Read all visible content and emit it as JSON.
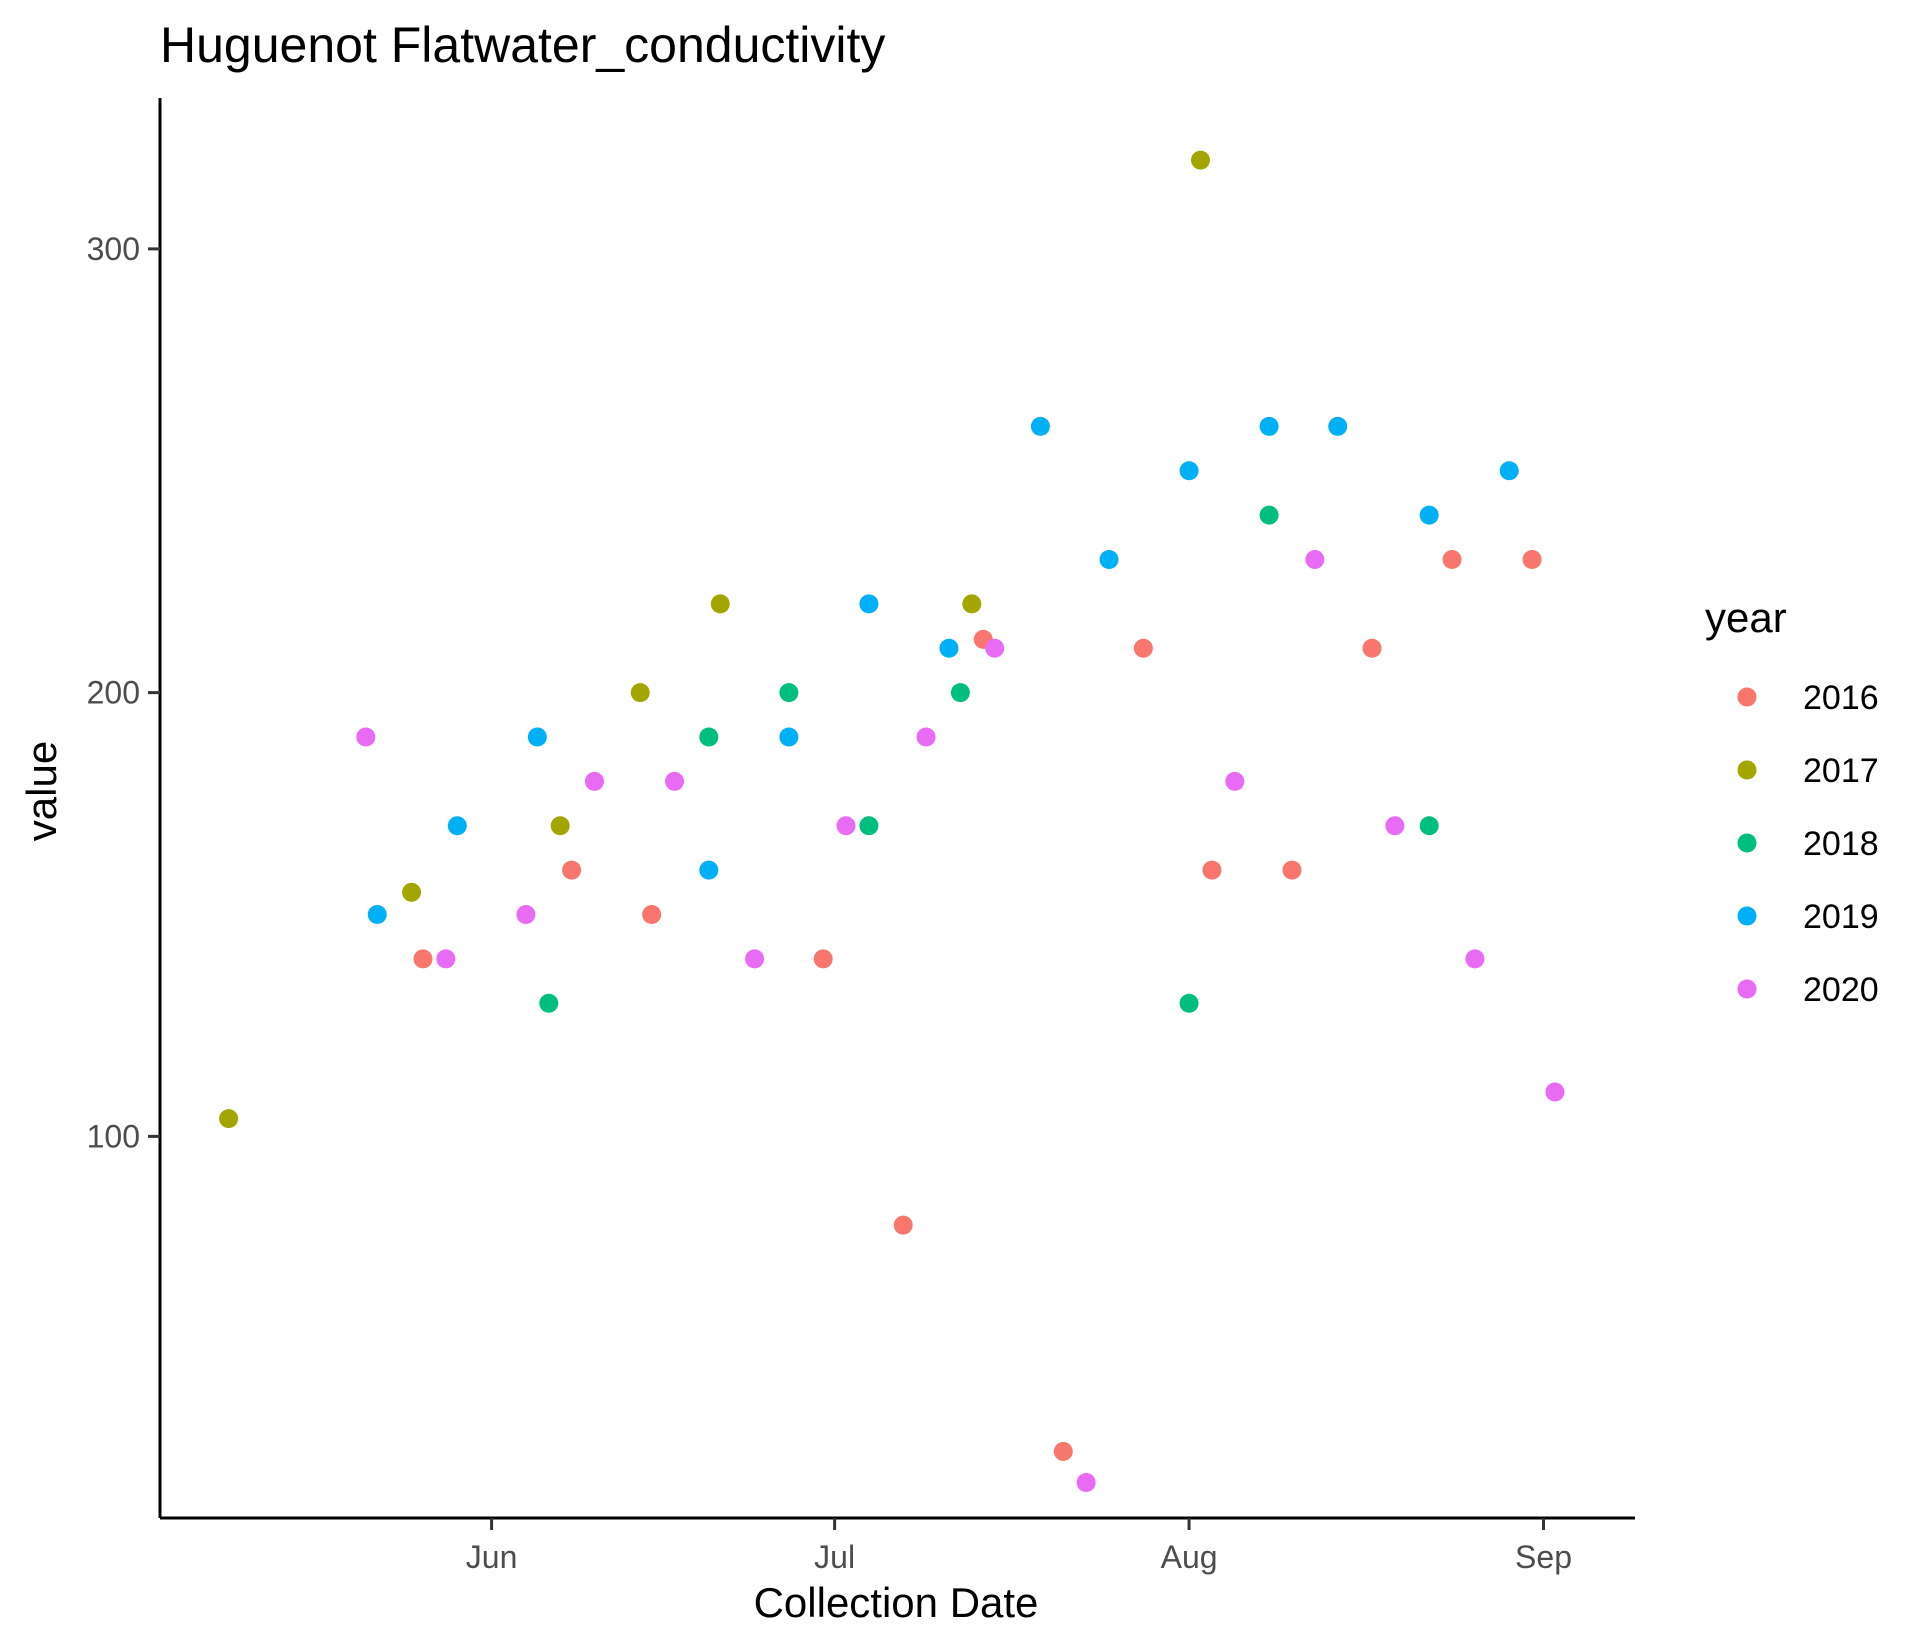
{
  "chart_data": {
    "type": "scatter",
    "title": "Huguenot Flatwater_conductivity",
    "xlabel": "Collection Date",
    "ylabel": "value",
    "x_axis": {
      "type": "date",
      "ticks": [
        {
          "label": "Jun",
          "value": "06-01"
        },
        {
          "label": "Jul",
          "value": "07-01"
        },
        {
          "label": "Aug",
          "value": "08-01"
        },
        {
          "label": "Sep",
          "value": "09-01"
        }
      ]
    },
    "y_axis": {
      "ticks": [
        100,
        200,
        300
      ]
    },
    "ylim": [
      14,
      334
    ],
    "xlim": [
      "05-03",
      "09-09"
    ],
    "grid": false,
    "legend": {
      "title": "year",
      "placement": "right"
    },
    "series": [
      {
        "name": "2016",
        "color": "#F8766D",
        "points": [
          {
            "x": "05-26",
            "y": 140
          },
          {
            "x": "06-08",
            "y": 160
          },
          {
            "x": "06-15",
            "y": 150
          },
          {
            "x": "06-30",
            "y": 140
          },
          {
            "x": "07-07",
            "y": 80
          },
          {
            "x": "07-14",
            "y": 212
          },
          {
            "x": "07-21",
            "y": 29
          },
          {
            "x": "07-28",
            "y": 210
          },
          {
            "x": "08-03",
            "y": 160
          },
          {
            "x": "08-10",
            "y": 160
          },
          {
            "x": "08-17",
            "y": 210
          },
          {
            "x": "08-24",
            "y": 230
          },
          {
            "x": "08-31",
            "y": 230
          }
        ]
      },
      {
        "name": "2017",
        "color": "#A3A500",
        "points": [
          {
            "x": "05-09",
            "y": 104
          },
          {
            "x": "05-25",
            "y": 155
          },
          {
            "x": "06-07",
            "y": 170
          },
          {
            "x": "06-14",
            "y": 200
          },
          {
            "x": "06-21",
            "y": 220
          },
          {
            "x": "07-13",
            "y": 220
          },
          {
            "x": "08-02",
            "y": 320
          }
        ]
      },
      {
        "name": "2018",
        "color": "#00BF7D",
        "points": [
          {
            "x": "06-06",
            "y": 130
          },
          {
            "x": "06-20",
            "y": 190
          },
          {
            "x": "06-27",
            "y": 200
          },
          {
            "x": "07-04",
            "y": 170
          },
          {
            "x": "07-12",
            "y": 200
          },
          {
            "x": "08-01",
            "y": 130
          },
          {
            "x": "08-08",
            "y": 240
          },
          {
            "x": "08-22",
            "y": 170
          }
        ]
      },
      {
        "name": "2019",
        "color": "#00B0F6",
        "points": [
          {
            "x": "05-22",
            "y": 150
          },
          {
            "x": "05-29",
            "y": 170
          },
          {
            "x": "06-05",
            "y": 190
          },
          {
            "x": "06-20",
            "y": 160
          },
          {
            "x": "06-27",
            "y": 190
          },
          {
            "x": "07-04",
            "y": 220
          },
          {
            "x": "07-11",
            "y": 210
          },
          {
            "x": "07-19",
            "y": 260
          },
          {
            "x": "07-25",
            "y": 230
          },
          {
            "x": "08-01",
            "y": 250
          },
          {
            "x": "08-08",
            "y": 260
          },
          {
            "x": "08-14",
            "y": 260
          },
          {
            "x": "08-22",
            "y": 240
          },
          {
            "x": "08-29",
            "y": 250
          }
        ]
      },
      {
        "name": "2020",
        "color": "#E76BF3",
        "points": [
          {
            "x": "05-21",
            "y": 190
          },
          {
            "x": "05-28",
            "y": 140
          },
          {
            "x": "06-04",
            "y": 150
          },
          {
            "x": "06-10",
            "y": 180
          },
          {
            "x": "06-17",
            "y": 180
          },
          {
            "x": "06-24",
            "y": 140
          },
          {
            "x": "07-02",
            "y": 170
          },
          {
            "x": "07-09",
            "y": 190
          },
          {
            "x": "07-15",
            "y": 210
          },
          {
            "x": "07-23",
            "y": 22
          },
          {
            "x": "08-05",
            "y": 180
          },
          {
            "x": "08-12",
            "y": 230
          },
          {
            "x": "08-19",
            "y": 170
          },
          {
            "x": "08-26",
            "y": 140
          },
          {
            "x": "09-02",
            "y": 110
          }
        ]
      }
    ]
  }
}
